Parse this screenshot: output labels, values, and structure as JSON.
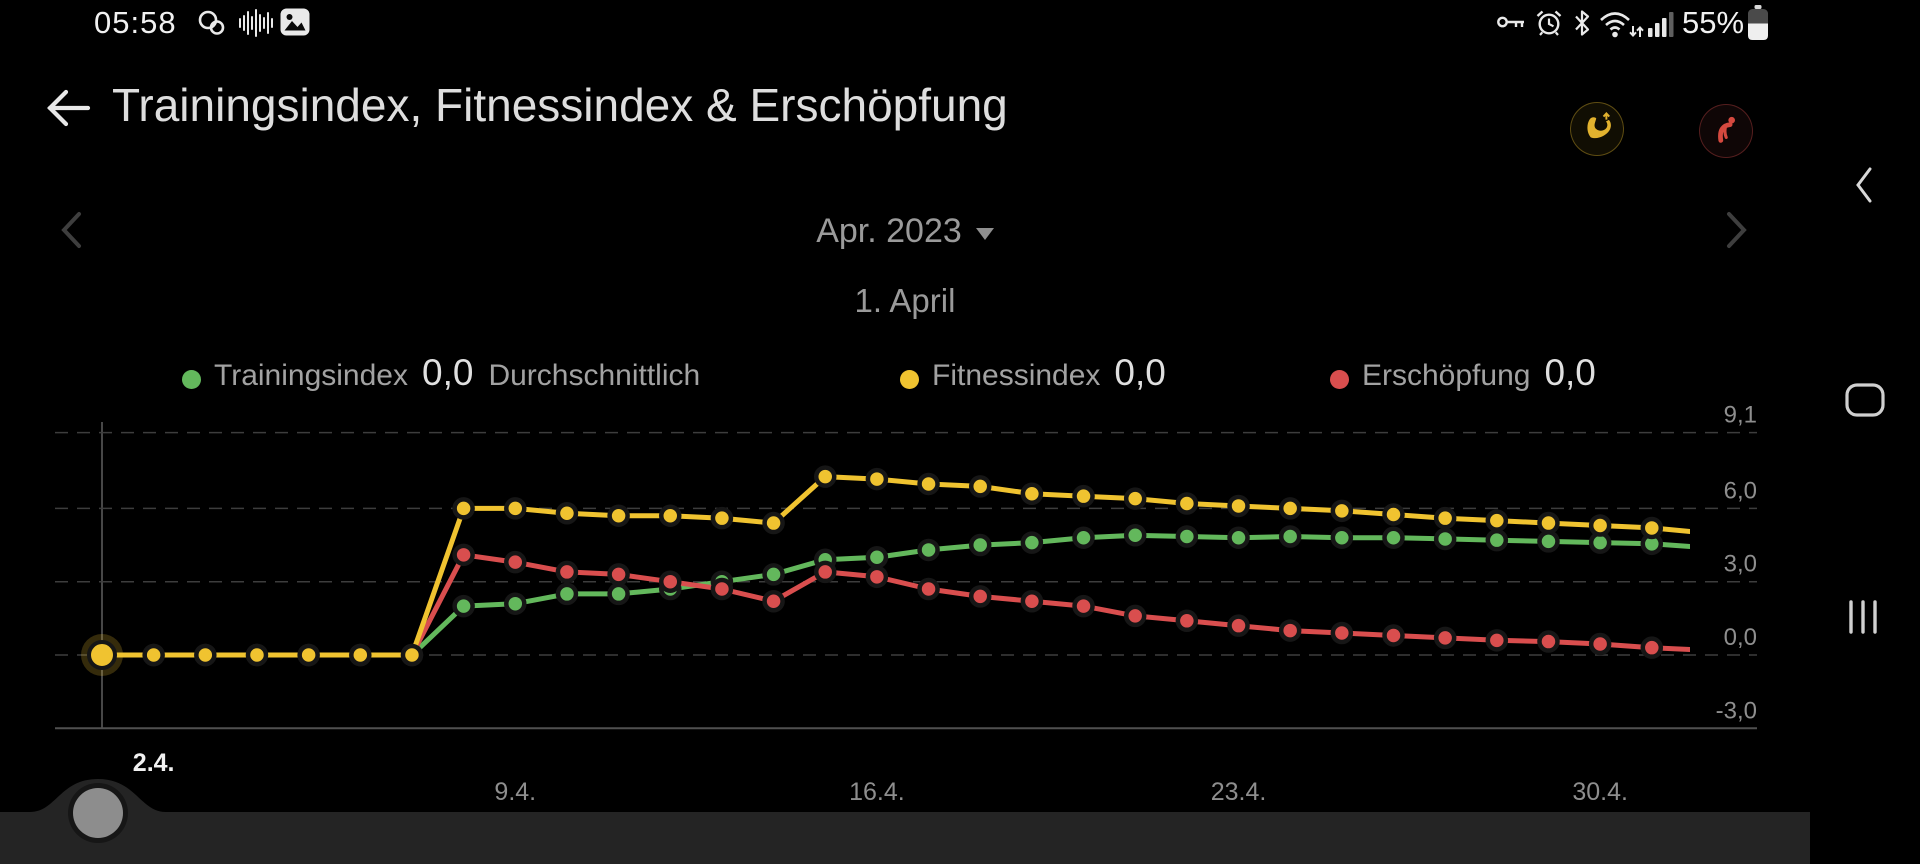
{
  "status_bar": {
    "time": "05:58",
    "battery_label": "55%"
  },
  "header": {
    "title": "Trainingsindex, Fitnessindex & Erschöpfung"
  },
  "date_nav": {
    "month": "Apr. 2023",
    "selected_day": "1. April"
  },
  "legend": {
    "items": [
      {
        "label": "Trainingsindex",
        "value": "0,0",
        "suffix": "Durchschnittlich",
        "color": "#63b85c"
      },
      {
        "label": "Fitnessindex",
        "value": "0,0",
        "suffix": "",
        "color": "#f0c330"
      },
      {
        "label": "Erschöpfung",
        "value": "0,0",
        "suffix": "",
        "color": "#d94e4e"
      }
    ]
  },
  "chart_data": {
    "type": "line",
    "title": "Trainingsindex, Fitnessindex & Erschöpfung",
    "x_ticks": [
      {
        "label": "2.4.",
        "day": 2,
        "emphasized": true
      },
      {
        "label": "9.4.",
        "day": 9
      },
      {
        "label": "16.4.",
        "day": 16
      },
      {
        "label": "23.4.",
        "day": 23
      },
      {
        "label": "30.4.",
        "day": 30
      }
    ],
    "y_ticks": [
      {
        "label": "9,1",
        "value": 9.1
      },
      {
        "label": "6,0",
        "value": 6.0
      },
      {
        "label": "3,0",
        "value": 3.0
      },
      {
        "label": "0,0",
        "value": 0.0
      },
      {
        "label": "-3,0",
        "value": -3.0,
        "solid": true
      }
    ],
    "ylim": [
      -3.0,
      9.1
    ],
    "legend_position": "top",
    "grid": "dashed-horizontal",
    "selected_day_index": 0,
    "series": [
      {
        "name": "Trainingsindex",
        "color": "#63b85c",
        "values": [
          0,
          0,
          0,
          0,
          0,
          0,
          0,
          2.0,
          2.1,
          2.5,
          2.5,
          2.7,
          3.0,
          3.3,
          3.9,
          4.0,
          4.3,
          4.5,
          4.6,
          4.8,
          4.9,
          4.85,
          4.8,
          4.85,
          4.8,
          4.8,
          4.75,
          4.7,
          4.65,
          4.6,
          4.55,
          4.4
        ]
      },
      {
        "name": "Fitnessindex",
        "color": "#f0c330",
        "values": [
          0,
          0,
          0,
          0,
          0,
          0,
          0,
          6.0,
          6.0,
          5.8,
          5.7,
          5.7,
          5.6,
          5.4,
          7.3,
          7.2,
          7.0,
          6.9,
          6.6,
          6.5,
          6.4,
          6.2,
          6.1,
          6.0,
          5.9,
          5.75,
          5.6,
          5.5,
          5.4,
          5.3,
          5.2,
          5.0
        ]
      },
      {
        "name": "Erschöpfung",
        "color": "#d94e4e",
        "values": [
          0,
          0,
          0,
          0,
          0,
          0,
          0,
          4.1,
          3.8,
          3.4,
          3.3,
          3.0,
          2.7,
          2.2,
          3.4,
          3.2,
          2.7,
          2.4,
          2.2,
          2.0,
          1.6,
          1.4,
          1.2,
          1.0,
          0.9,
          0.8,
          0.7,
          0.6,
          0.55,
          0.45,
          0.3,
          0.2
        ]
      }
    ],
    "draw_order": [
      0,
      2,
      1
    ]
  },
  "colors": {
    "background": "#000000",
    "sheet": "#242424",
    "handle": "#8d8d8d",
    "grid": "#3d3d3d",
    "axis_line": "#505050",
    "axis_text": "#8e8e8e",
    "emphasized_tick": "#f1f1f1"
  }
}
